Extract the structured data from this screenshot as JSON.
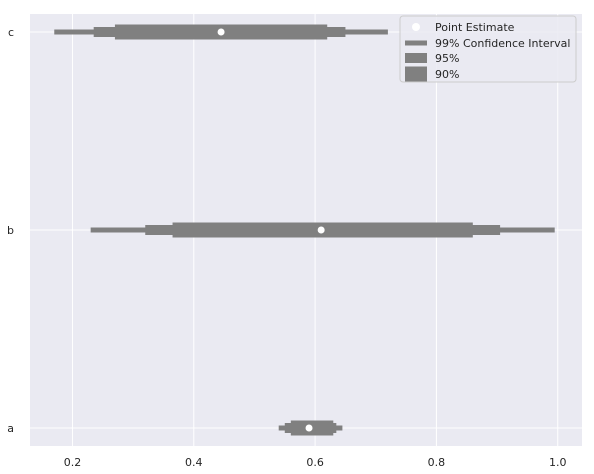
{
  "chart_data": {
    "type": "interval",
    "title": "",
    "xlabel": "",
    "ylabel": "",
    "xlim": [
      0.13,
      1.04
    ],
    "x_ticks": [
      0.2,
      0.4,
      0.6,
      0.8,
      1.0
    ],
    "x_tick_labels": [
      "0.2",
      "0.4",
      "0.6",
      "0.8",
      "1.0"
    ],
    "categories": [
      "c",
      "b",
      "a"
    ],
    "grid": true,
    "legend_position": "top-right",
    "colors": {
      "interval": "#808080",
      "point": "#ffffff",
      "background": "#eaeaf2",
      "grid": "#ffffff"
    },
    "series": [
      {
        "category": "c",
        "point_estimate": 0.445,
        "ci_99": [
          0.17,
          0.72
        ],
        "ci_95": [
          0.235,
          0.65
        ],
        "ci_90": [
          0.27,
          0.62
        ]
      },
      {
        "category": "b",
        "point_estimate": 0.61,
        "ci_99": [
          0.23,
          0.995
        ],
        "ci_95": [
          0.32,
          0.905
        ],
        "ci_90": [
          0.365,
          0.86
        ]
      },
      {
        "category": "a",
        "point_estimate": 0.59,
        "ci_99": [
          0.54,
          0.645
        ],
        "ci_95": [
          0.55,
          0.635
        ],
        "ci_90": [
          0.56,
          0.63
        ]
      }
    ],
    "legend": [
      {
        "key": "point",
        "label": "Point Estimate"
      },
      {
        "key": "ci_99",
        "label": "99% Confidence Interval"
      },
      {
        "key": "ci_95",
        "label": "95%"
      },
      {
        "key": "ci_90",
        "label": "90%"
      }
    ]
  }
}
